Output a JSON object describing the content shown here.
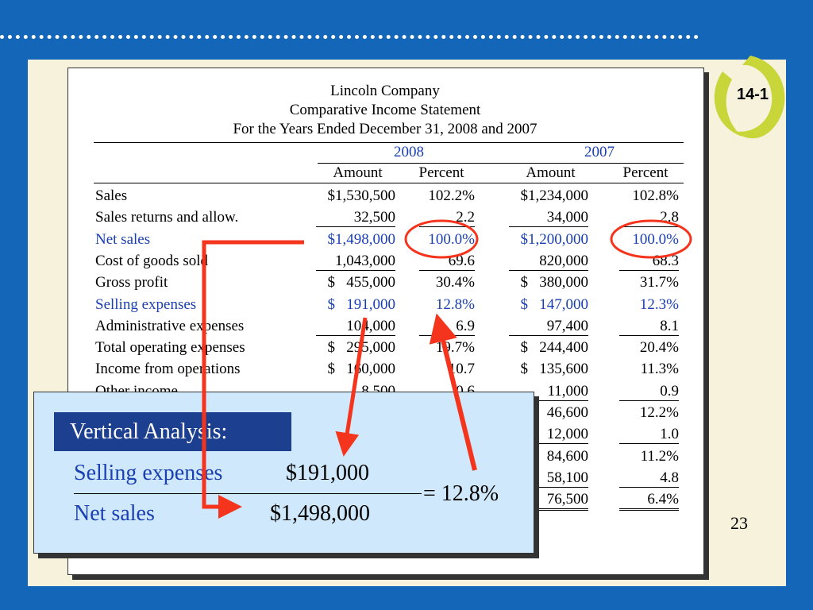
{
  "header": {
    "title": "Lincoln Company",
    "subtitle": "Comparative Income Statement",
    "period": "For the Years Ended December 31, 2008 and 2007"
  },
  "badge": "14-1",
  "page_number": "23",
  "table": {
    "years": [
      "2008",
      "2007"
    ],
    "columns": [
      "Amount",
      "Percent",
      "Amount",
      "Percent"
    ],
    "rows": [
      {
        "label": "Sales",
        "cells": [
          "$1,530,500",
          "102.2%",
          "$1,234,000",
          "102.8%"
        ]
      },
      {
        "label": "Sales returns and allow.",
        "cells": [
          "32,500",
          "2.2",
          "34,000",
          "2.8"
        ],
        "underline": true
      },
      {
        "label": "Net sales",
        "cells": [
          "$1,498,000",
          "100.0%",
          "$1,200,000",
          "100.0%"
        ],
        "highlight": true
      },
      {
        "label": "Cost of goods sold",
        "cells": [
          "1,043,000",
          "69.6",
          "820,000",
          "68.3"
        ],
        "underline": true
      },
      {
        "label": "Gross profit",
        "cells": [
          "$   455,000",
          "30.4%",
          "$   380,000",
          "31.7%"
        ]
      },
      {
        "label": "Selling expenses",
        "cells": [
          "$   191,000",
          "12.8%",
          "$   147,000",
          "12.3%"
        ],
        "highlight": true
      },
      {
        "label": "Administrative expenses",
        "cells": [
          "104,000",
          "6.9",
          "97,400",
          "8.1"
        ],
        "underline": true
      },
      {
        "label": "Total operating expenses",
        "cells": [
          "$   295,000",
          "19.7%",
          "$   244,400",
          "20.4%"
        ]
      },
      {
        "label": "Income from operations",
        "cells": [
          "$   160,000",
          "10.7",
          "$   135,600",
          "11.3%"
        ]
      },
      {
        "label": "Other income",
        "cells": [
          "8,500",
          "0.6",
          "11,000",
          "0.9"
        ],
        "underline": true
      },
      {
        "cells": [
          null,
          null,
          "46,600",
          "12.2%"
        ]
      },
      {
        "cells": [
          null,
          null,
          "12,000",
          "1.0"
        ],
        "underline": true
      },
      {
        "cells": [
          null,
          null,
          "84,600",
          "11.2%"
        ]
      },
      {
        "cells": [
          null,
          null,
          "58,100",
          "4.8"
        ],
        "underline": true
      },
      {
        "cells": [
          null,
          null,
          "76,500",
          "6.4%"
        ],
        "double": true
      }
    ]
  },
  "callout": {
    "heading": "Vertical Analysis:",
    "numerator_label": "Selling expenses",
    "numerator": "$191,000",
    "denominator_label": "Net sales",
    "denominator": "$1,498,000",
    "result": "= 12.8%"
  }
}
